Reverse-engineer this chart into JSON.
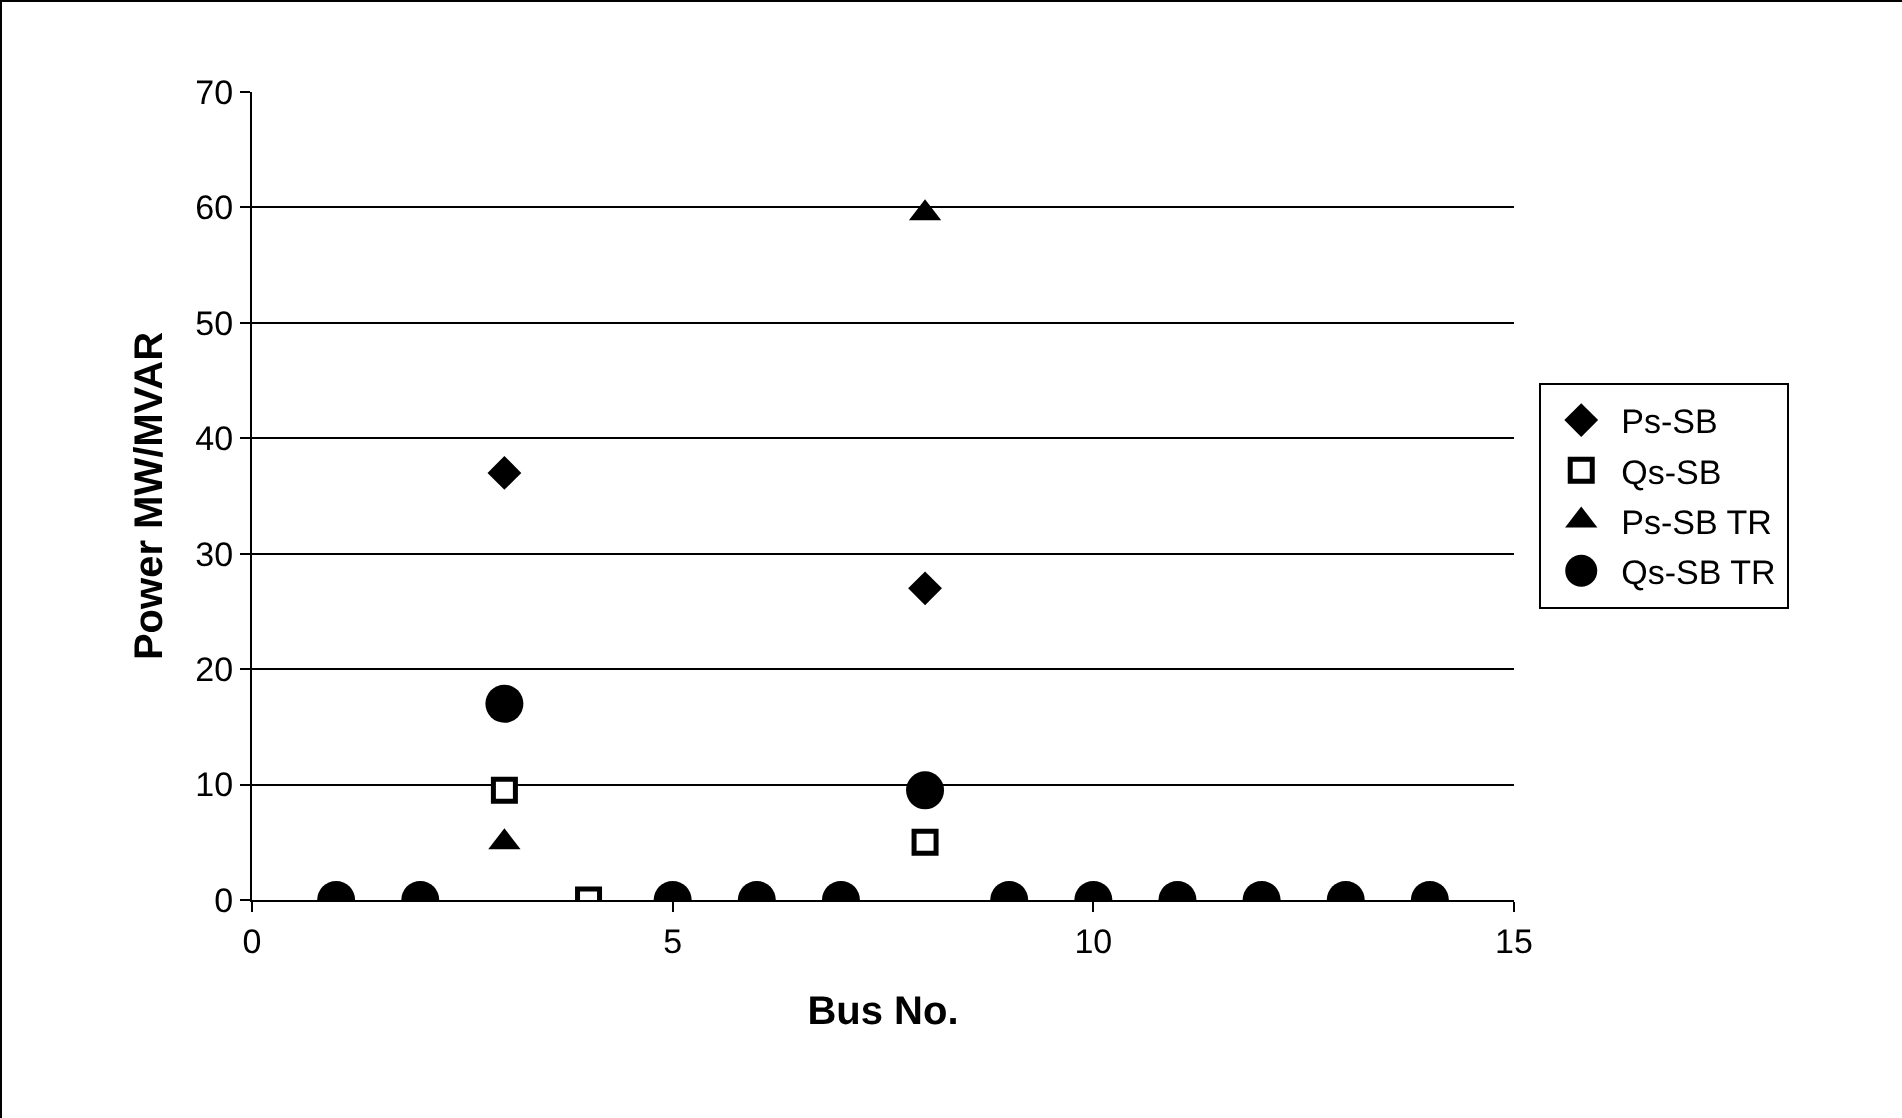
{
  "chart_data": {
    "type": "scatter",
    "xlabel": "Bus No.",
    "ylabel": "Power MW/MVAR",
    "xlim": [
      0,
      15
    ],
    "xticks": [
      0,
      5,
      10,
      15
    ],
    "ylim": [
      0,
      70
    ],
    "yticks": [
      0,
      10,
      20,
      30,
      40,
      50,
      60,
      70
    ],
    "grid": "y",
    "legend": "right",
    "series": [
      {
        "name": "Ps-SB",
        "color": "#000000",
        "marker": "diamond",
        "x": [
          3,
          8
        ],
        "values": [
          37,
          27
        ]
      },
      {
        "name": "Qs-SB",
        "color": "#000000",
        "marker": "square",
        "x": [
          3,
          4,
          8
        ],
        "values": [
          9.5,
          0,
          5
        ]
      },
      {
        "name": "Ps-SB TR",
        "color": "#000000",
        "marker": "triangle",
        "x": [
          3,
          8
        ],
        "values": [
          5,
          59.5
        ]
      },
      {
        "name": "Qs-SB TR",
        "color": "#000000",
        "marker": "circle",
        "x": [
          1,
          2,
          3,
          5,
          6,
          7,
          8,
          9,
          10,
          11,
          12,
          13,
          14
        ],
        "values": [
          0,
          0,
          17,
          0,
          0,
          0,
          9.5,
          0,
          0,
          0,
          0,
          0,
          0
        ]
      }
    ]
  }
}
